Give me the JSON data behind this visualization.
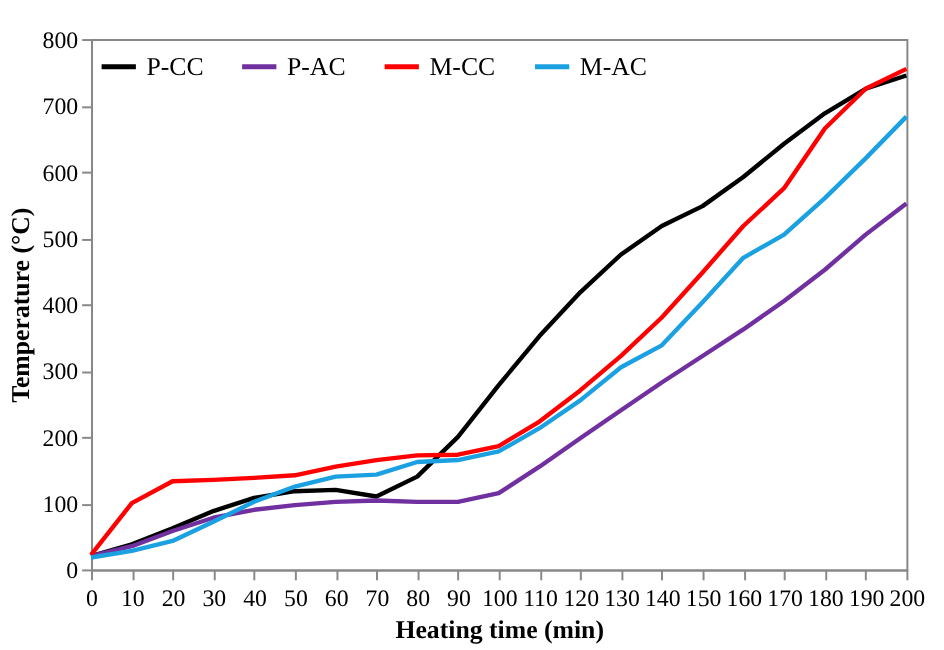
{
  "chart_data": {
    "type": "line",
    "xlabel": "Heating time (min)",
    "ylabel": "Temperature (°C)",
    "x": [
      0,
      10,
      20,
      30,
      40,
      50,
      60,
      70,
      80,
      90,
      100,
      110,
      120,
      130,
      140,
      150,
      160,
      170,
      180,
      190,
      200
    ],
    "series": [
      {
        "name": "P-CC",
        "color": "#000000",
        "values": [
          20,
          38,
          62,
          88,
          108,
          118,
          120,
          110,
          140,
          200,
          278,
          352,
          418,
          475,
          518,
          548,
          592,
          642,
          688,
          725,
          745
        ]
      },
      {
        "name": "P-AC",
        "color": "#7030a0",
        "values": [
          20,
          35,
          58,
          78,
          90,
          97,
          102,
          104,
          102,
          102,
          115,
          155,
          198,
          240,
          282,
          322,
          362,
          405,
          452,
          505,
          552
        ]
      },
      {
        "name": "M-CC",
        "color": "#ff0000",
        "values": [
          22,
          100,
          133,
          135,
          138,
          142,
          155,
          165,
          172,
          173,
          186,
          223,
          270,
          322,
          380,
          448,
          518,
          575,
          665,
          725,
          755
        ]
      },
      {
        "name": "M-AC",
        "color": "#1ba1e2",
        "values": [
          18,
          28,
          43,
          72,
          102,
          125,
          140,
          143,
          162,
          165,
          178,
          213,
          255,
          305,
          338,
          403,
          470,
          505,
          560,
          620,
          683
        ]
      }
    ],
    "xlim": [
      0,
      200
    ],
    "xticks": [
      0,
      10,
      20,
      30,
      40,
      50,
      60,
      70,
      80,
      90,
      100,
      110,
      120,
      130,
      140,
      150,
      160,
      170,
      180,
      190,
      200
    ],
    "ylim": [
      0,
      800
    ],
    "yticks": [
      0,
      100,
      200,
      300,
      400,
      500,
      600,
      700,
      800
    ],
    "grid": false,
    "legend": "top left",
    "marker": "none",
    "line_style": "solid"
  }
}
